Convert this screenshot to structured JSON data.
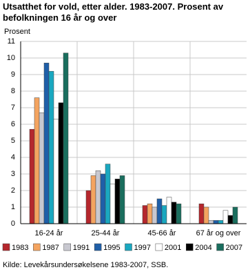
{
  "chart_data": {
    "type": "bar",
    "title": "Utsatthet for vold, etter alder. 1983-2007. Prosent av befolkningen 16 år og over",
    "y_label": "Prosent",
    "categories": [
      "16-24 år",
      "25-44 år",
      "45-66 år",
      "67 år og over"
    ],
    "series": [
      {
        "name": "1983",
        "color": "#b5272d",
        "values": [
          5.7,
          2.0,
          1.1,
          1.2
        ]
      },
      {
        "name": "1987",
        "color": "#f4a460",
        "values": [
          7.6,
          2.9,
          1.2,
          1.0
        ]
      },
      {
        "name": "1991",
        "color": "#c8c8d0",
        "values": [
          6.7,
          3.2,
          1.0,
          0.2
        ]
      },
      {
        "name": "1995",
        "color": "#1f5fa8",
        "values": [
          9.7,
          3.0,
          1.5,
          0.2
        ]
      },
      {
        "name": "1997",
        "color": "#1aa8c0",
        "values": [
          9.2,
          3.6,
          1.1,
          0.2
        ]
      },
      {
        "name": "2001",
        "color": "#ffffff",
        "values": [
          6.3,
          2.4,
          1.6,
          0.8
        ]
      },
      {
        "name": "2004",
        "color": "#000000",
        "values": [
          7.3,
          2.7,
          1.3,
          0.5
        ]
      },
      {
        "name": "2007",
        "color": "#1a6e5e",
        "values": [
          10.3,
          2.9,
          1.2,
          1.0
        ]
      }
    ],
    "ylim": [
      0,
      11
    ],
    "yticks": [
      0,
      1,
      2,
      3,
      4,
      5,
      6,
      7,
      8,
      9,
      10,
      11
    ],
    "grid": true,
    "source": "Kilde: Levekårsundersøkelsene 1983-2007, SSB."
  }
}
